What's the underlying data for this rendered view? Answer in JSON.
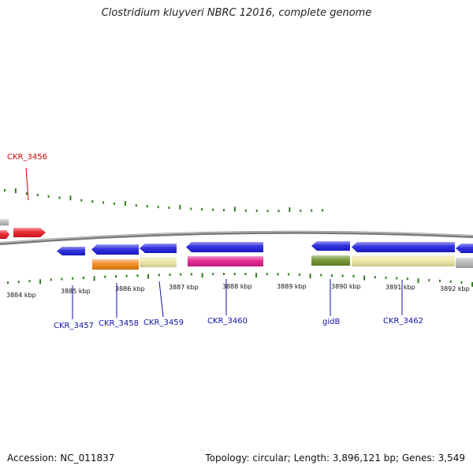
{
  "title": "Clostridium kluyveri NBRC 12016, complete genome",
  "footer": {
    "accession": "Accession: NC_011837",
    "summary": "Topology: circular; Length: 3,896,121 bp; Genes: 3,549"
  },
  "colors": {
    "backbone": "#7a7a7a",
    "tick": "#2e7d1e",
    "label_blue": "#1111aa",
    "label_red": "#cc0000",
    "cds_blue": "#1a1adb",
    "cds_red": "#e8141e",
    "cds_gray": "#b4b4b4",
    "orange": "#f0820f",
    "khaki": "#ede6a0",
    "magenta": "#e0168c",
    "olive": "#6b8e23"
  },
  "axis": {
    "unit": "kbp",
    "major_ticks": [
      "3884 kbp",
      "3885 kbp",
      "3886 kbp",
      "3887 kbp",
      "3888 kbp",
      "3889 kbp",
      "3890 kbp",
      "3891 kbp",
      "3892 kbp"
    ]
  },
  "genes": [
    {
      "label": "CKR_3456",
      "color": "label_red"
    },
    {
      "label": "CKR_3457",
      "color": "label_blue"
    },
    {
      "label": "CKR_3458",
      "color": "label_blue"
    },
    {
      "label": "CKR_3459",
      "color": "label_blue"
    },
    {
      "label": "CKR_3460",
      "color": "label_blue"
    },
    {
      "label": "gidB",
      "color": "label_blue"
    },
    {
      "label": "CKR_3462",
      "color": "label_blue"
    }
  ]
}
